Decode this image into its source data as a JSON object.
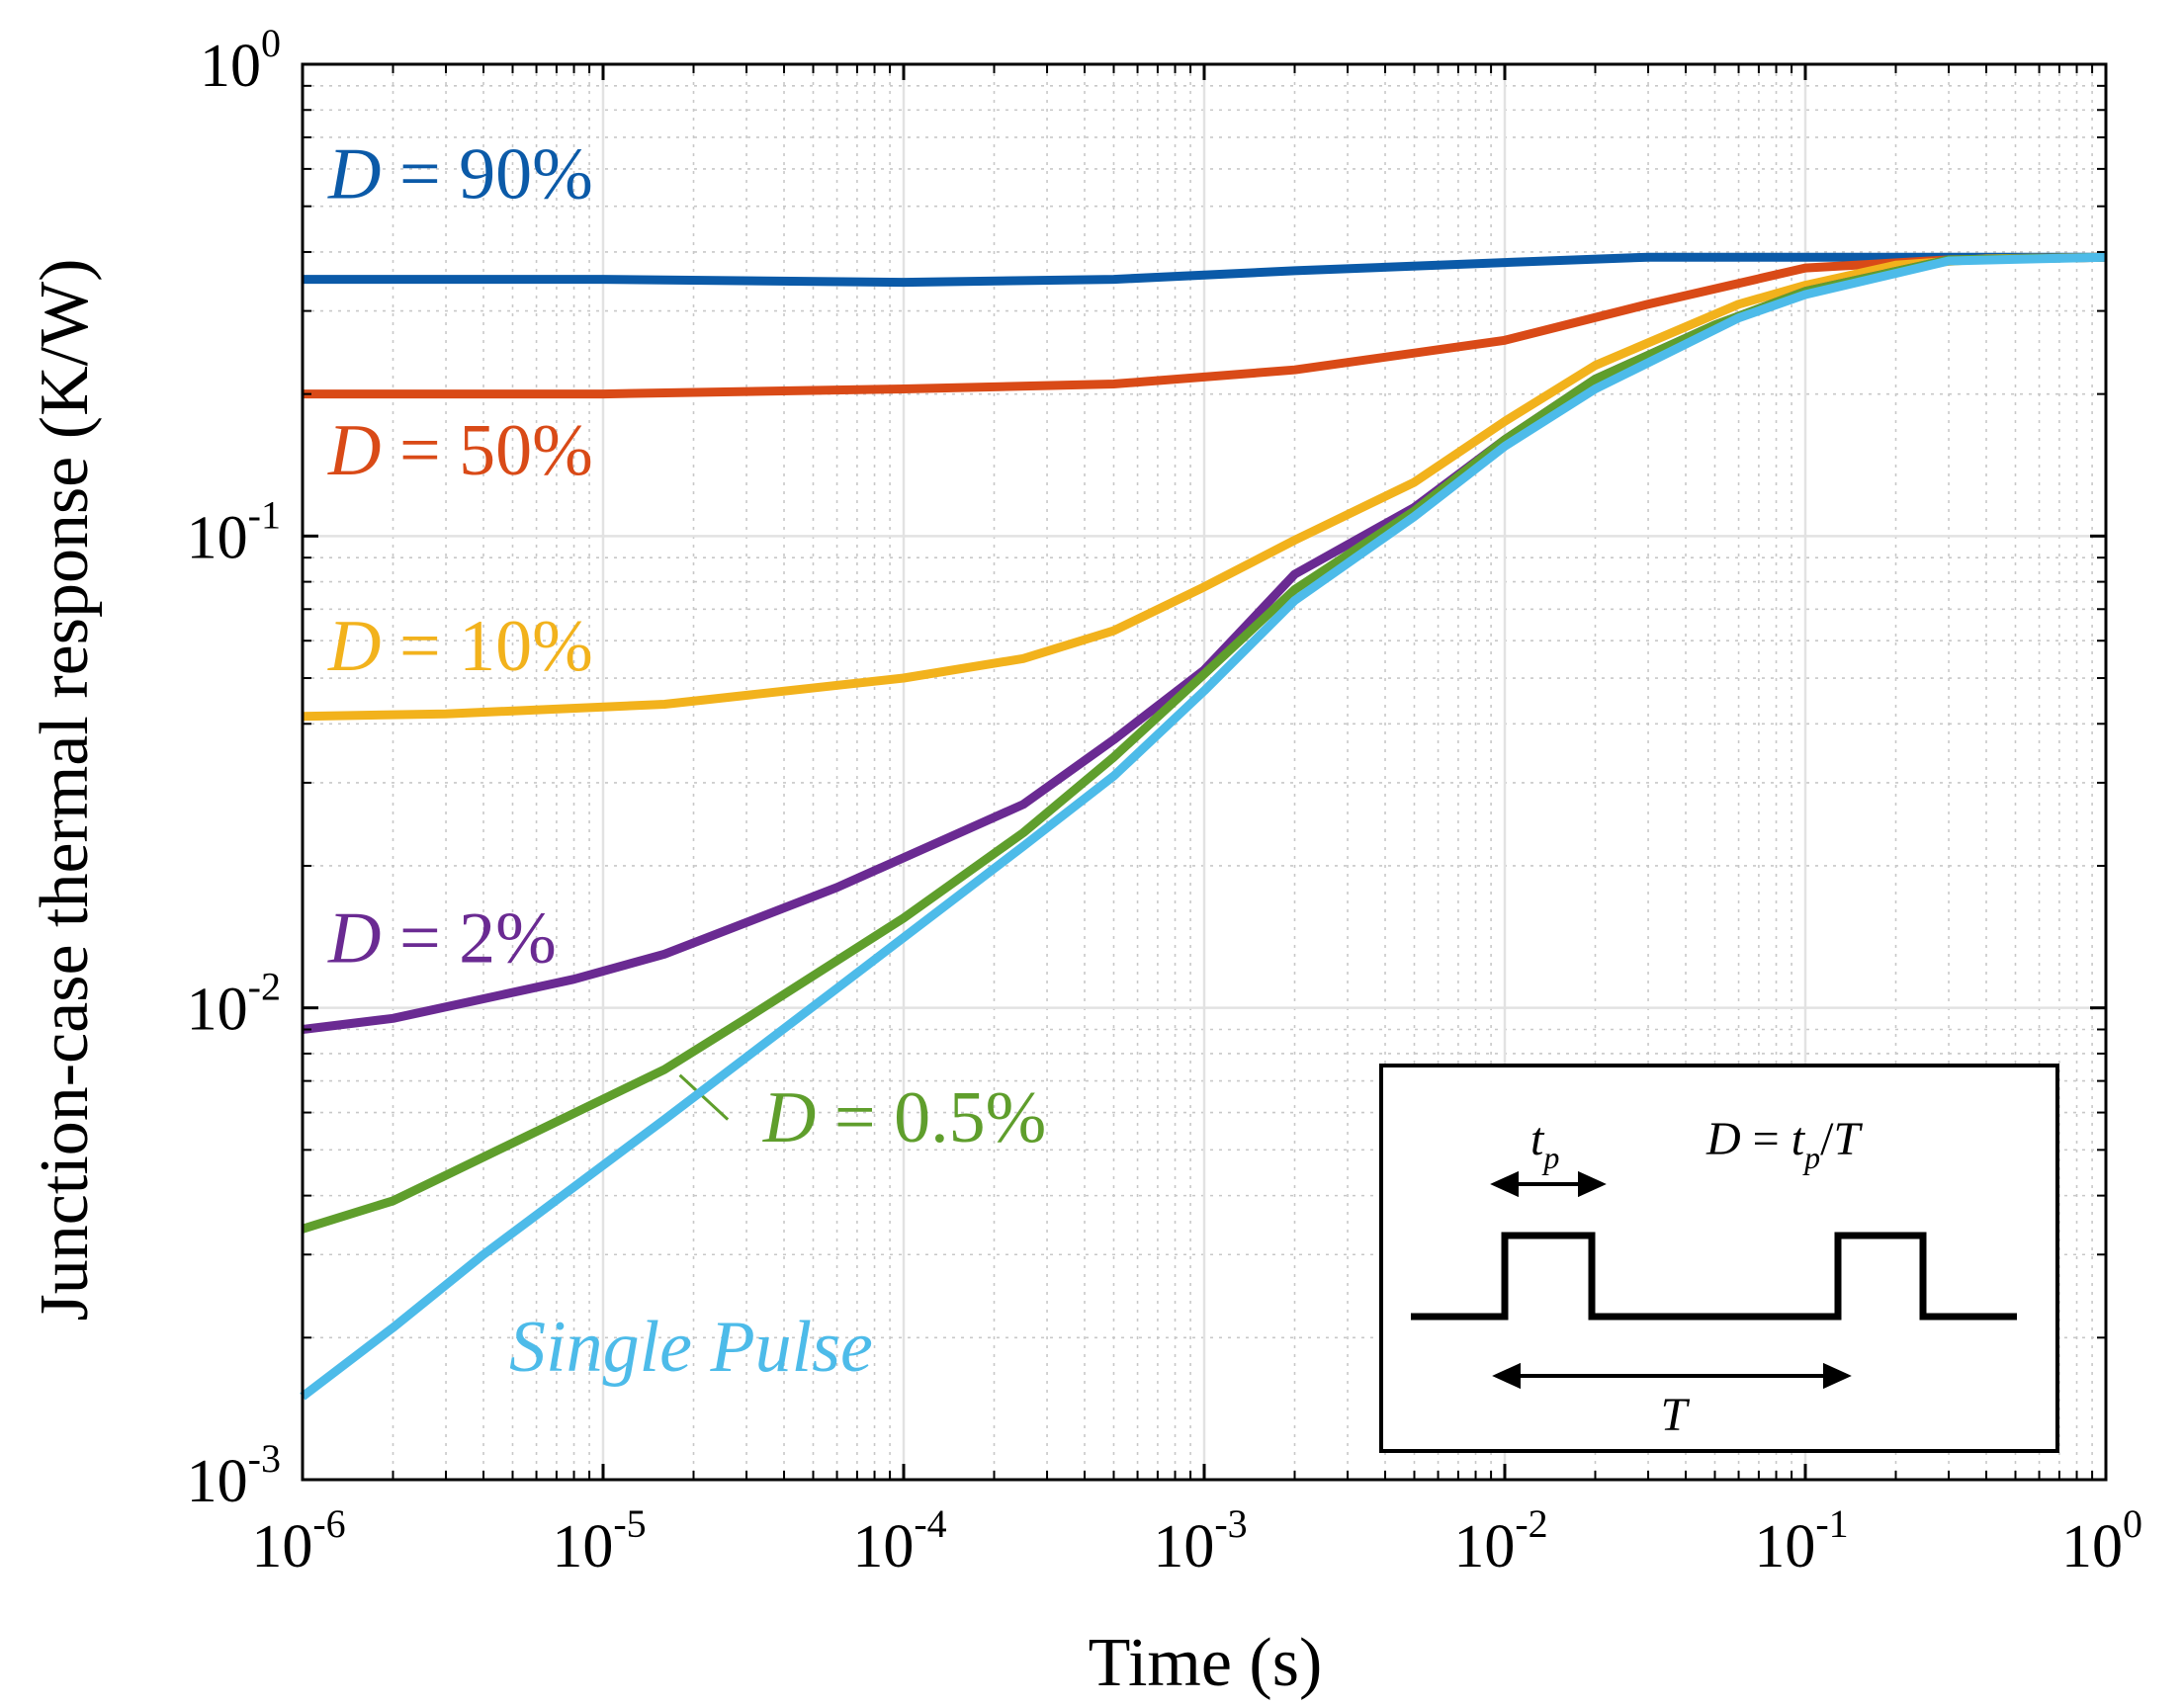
{
  "chart_data": {
    "type": "line",
    "title": "",
    "xlabel": "Time (s)",
    "ylabel": "Junction-case thermal response (K/W)",
    "xscale": "log",
    "yscale": "log",
    "xlim": [
      1e-06,
      1
    ],
    "ylim": [
      0.001,
      1
    ],
    "grid": true,
    "x_ticks": [
      {
        "base": "10",
        "exp": "-6",
        "value": 1e-06
      },
      {
        "base": "10",
        "exp": "-5",
        "value": 1e-05
      },
      {
        "base": "10",
        "exp": "-4",
        "value": 0.0001
      },
      {
        "base": "10",
        "exp": "-3",
        "value": 0.001
      },
      {
        "base": "10",
        "exp": "-2",
        "value": 0.01
      },
      {
        "base": "10",
        "exp": "-1",
        "value": 0.1
      },
      {
        "base": "10",
        "exp": "0",
        "value": 1
      }
    ],
    "y_ticks": [
      {
        "base": "10",
        "exp": "-3",
        "value": 0.001
      },
      {
        "base": "10",
        "exp": "-2",
        "value": 0.01
      },
      {
        "base": "10",
        "exp": "-1",
        "value": 0.1
      },
      {
        "base": "10",
        "exp": "0",
        "value": 1
      }
    ],
    "series": [
      {
        "name": "D = 90%",
        "label_var": "D",
        "label_rest": " = 90%",
        "color": "#0b5aa8",
        "label_pos": [
          1e-06,
          0.52
        ],
        "label_anchor": "start",
        "points": [
          [
            1e-06,
            0.35
          ],
          [
            1e-05,
            0.35
          ],
          [
            0.0001,
            0.345
          ],
          [
            0.0005,
            0.35
          ],
          [
            0.002,
            0.365
          ],
          [
            0.01,
            0.38
          ],
          [
            0.03,
            0.39
          ],
          [
            0.1,
            0.39
          ],
          [
            0.3,
            0.39
          ],
          [
            1,
            0.39
          ]
        ]
      },
      {
        "name": "D = 50%",
        "label_var": "D",
        "label_rest": " = 50%",
        "color": "#d94a17",
        "label_pos": [
          1e-06,
          0.135
        ],
        "label_anchor": "start",
        "points": [
          [
            1e-06,
            0.2
          ],
          [
            2e-06,
            0.2
          ],
          [
            1e-05,
            0.2
          ],
          [
            0.0001,
            0.205
          ],
          [
            0.0005,
            0.21
          ],
          [
            0.002,
            0.225
          ],
          [
            0.01,
            0.26
          ],
          [
            0.03,
            0.31
          ],
          [
            0.1,
            0.37
          ],
          [
            0.3,
            0.385
          ],
          [
            1,
            0.39
          ]
        ]
      },
      {
        "name": "D = 10%",
        "label_var": "D",
        "label_rest": " = 10%",
        "color": "#f2b21c",
        "label_pos": [
          1e-06,
          0.052
        ],
        "label_anchor": "start",
        "points": [
          [
            1e-06,
            0.0415
          ],
          [
            3e-06,
            0.042
          ],
          [
            1.6e-05,
            0.044
          ],
          [
            0.0001,
            0.05
          ],
          [
            0.00025,
            0.055
          ],
          [
            0.0005,
            0.063
          ],
          [
            0.001,
            0.078
          ],
          [
            0.002,
            0.098
          ],
          [
            0.005,
            0.13
          ],
          [
            0.01,
            0.175
          ],
          [
            0.02,
            0.23
          ],
          [
            0.06,
            0.31
          ],
          [
            0.1,
            0.34
          ],
          [
            0.2,
            0.375
          ],
          [
            0.4,
            0.387
          ],
          [
            1,
            0.39
          ]
        ]
      },
      {
        "name": "D = 2%",
        "label_var": "D",
        "label_rest": " = 2%",
        "color": "#6a2a92",
        "label_pos": [
          1e-06,
          0.0125
        ],
        "label_anchor": "start",
        "points": [
          [
            1e-06,
            0.009
          ],
          [
            2e-06,
            0.0095
          ],
          [
            8e-06,
            0.0115
          ],
          [
            1.6e-05,
            0.013
          ],
          [
            6e-05,
            0.018
          ],
          [
            0.00025,
            0.027
          ],
          [
            0.0005,
            0.037
          ],
          [
            0.001,
            0.052
          ],
          [
            0.002,
            0.083
          ],
          [
            0.005,
            0.115
          ],
          [
            0.01,
            0.16
          ],
          [
            0.02,
            0.215
          ],
          [
            0.05,
            0.28
          ],
          [
            0.1,
            0.33
          ],
          [
            0.3,
            0.385
          ],
          [
            1,
            0.39
          ]
        ]
      },
      {
        "name": "D = 0.5%",
        "label_var": "D",
        "label_rest": " = 0.5%",
        "color": "#5f9e2c",
        "label_pos": [
          2.8e-05,
          0.0052
        ],
        "label_anchor": "start",
        "leader": [
          [
            1.8e-05,
            0.0072
          ],
          [
            2.6e-05,
            0.0058
          ]
        ],
        "points": [
          [
            1e-06,
            0.0034
          ],
          [
            2e-06,
            0.0039
          ],
          [
            1.6e-05,
            0.0074
          ],
          [
            3e-05,
            0.0095
          ],
          [
            0.0001,
            0.0155
          ],
          [
            0.00025,
            0.0235
          ],
          [
            0.0005,
            0.034
          ],
          [
            0.001,
            0.051
          ],
          [
            0.002,
            0.077
          ],
          [
            0.005,
            0.113
          ],
          [
            0.01,
            0.16
          ],
          [
            0.02,
            0.215
          ],
          [
            0.05,
            0.28
          ],
          [
            0.1,
            0.33
          ],
          [
            0.3,
            0.385
          ],
          [
            1,
            0.39
          ]
        ]
      },
      {
        "name": "Single Pulse",
        "label_italic_all": true,
        "label_var": "Single Pulse",
        "label_rest": "",
        "color": "#4dbbe9",
        "label_pos": [
          4e-06,
          0.0017
        ],
        "label_anchor": "start",
        "points": [
          [
            1e-06,
            0.0015
          ],
          [
            2e-06,
            0.0021
          ],
          [
            4e-06,
            0.003
          ],
          [
            1.6e-05,
            0.0058
          ],
          [
            6e-05,
            0.011
          ],
          [
            0.00025,
            0.022
          ],
          [
            0.0005,
            0.031
          ],
          [
            0.001,
            0.047
          ],
          [
            0.002,
            0.073
          ],
          [
            0.005,
            0.11
          ],
          [
            0.01,
            0.155
          ],
          [
            0.02,
            0.205
          ],
          [
            0.06,
            0.29
          ],
          [
            0.1,
            0.325
          ],
          [
            0.3,
            0.383
          ],
          [
            1,
            0.39
          ]
        ]
      }
    ],
    "inset": {
      "tp_var": "t",
      "tp_sub": "p",
      "period_var": "T",
      "formula_var": "D",
      "formula_eq": " = ",
      "formula_t": "t",
      "formula_sub": "p",
      "formula_slash": "/",
      "formula_T": "T"
    }
  }
}
